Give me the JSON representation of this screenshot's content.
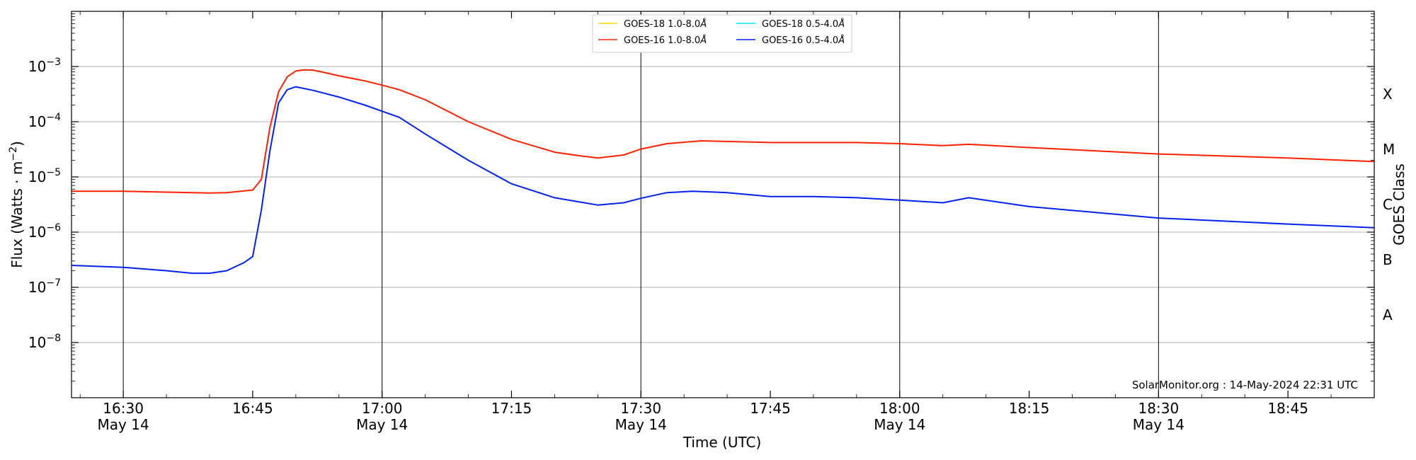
{
  "chart_data": {
    "type": "line",
    "title": "",
    "xlabel": "Time (UTC)",
    "ylabel": "Flux (Watts · m",
    "ylabel_sup": "−2",
    "ylabel_close": ")",
    "y2label": "GOES Class",
    "yscale": "log",
    "ylim": [
      1e-09,
      0.01
    ],
    "xlim": [
      "2024-05-14 16:24",
      "2024-05-14 18:55"
    ],
    "grid": "horizontal at decades",
    "legend_position": "top-center",
    "x_ticks": [
      {
        "time": "2024-05-14 16:30",
        "label": "16:30",
        "sublabel": "May 14",
        "vline": true
      },
      {
        "time": "2024-05-14 16:45",
        "label": "16:45",
        "sublabel": "",
        "vline": false
      },
      {
        "time": "2024-05-14 17:00",
        "label": "17:00",
        "sublabel": "May 14",
        "vline": true
      },
      {
        "time": "2024-05-14 17:15",
        "label": "17:15",
        "sublabel": "",
        "vline": false
      },
      {
        "time": "2024-05-14 17:30",
        "label": "17:30",
        "sublabel": "May 14",
        "vline": true
      },
      {
        "time": "2024-05-14 17:45",
        "label": "17:45",
        "sublabel": "",
        "vline": false
      },
      {
        "time": "2024-05-14 18:00",
        "label": "18:00",
        "sublabel": "May 14",
        "vline": true
      },
      {
        "time": "2024-05-14 18:15",
        "label": "18:15",
        "sublabel": "",
        "vline": false
      },
      {
        "time": "2024-05-14 18:30",
        "label": "18:30",
        "sublabel": "May 14",
        "vline": true
      },
      {
        "time": "2024-05-14 18:45",
        "label": "18:45",
        "sublabel": "",
        "vline": false
      }
    ],
    "y_ticks": [
      {
        "value": 1e-08,
        "base": "10",
        "exp": "−8"
      },
      {
        "value": 1e-07,
        "base": "10",
        "exp": "−7"
      },
      {
        "value": 1e-06,
        "base": "10",
        "exp": "−6"
      },
      {
        "value": 1e-05,
        "base": "10",
        "exp": "−5"
      },
      {
        "value": 0.0001,
        "base": "10",
        "exp": "−4"
      },
      {
        "value": 0.001,
        "base": "10",
        "exp": "−3"
      }
    ],
    "goes_classes": [
      {
        "label": "A",
        "value": 3.16e-08
      },
      {
        "label": "B",
        "value": 3.16e-07
      },
      {
        "label": "C",
        "value": 3.16e-06
      },
      {
        "label": "M",
        "value": 3.16e-05
      },
      {
        "label": "X",
        "value": 0.000316
      }
    ],
    "series": [
      {
        "name": "GOES-18 1.0-8.0",
        "unit": "Å",
        "color": "#ffd700",
        "points": []
      },
      {
        "name": "GOES-16 1.0-8.0",
        "unit": "Å",
        "color": "#ff2200",
        "points": [
          [
            "2024-05-14 16:24",
            5.5e-06
          ],
          [
            "2024-05-14 16:30",
            5.5e-06
          ],
          [
            "2024-05-14 16:35",
            5.3e-06
          ],
          [
            "2024-05-14 16:40",
            5.1e-06
          ],
          [
            "2024-05-14 16:42",
            5.2e-06
          ],
          [
            "2024-05-14 16:45",
            5.8e-06
          ],
          [
            "2024-05-14 16:46",
            9e-06
          ],
          [
            "2024-05-14 16:47",
            8e-05
          ],
          [
            "2024-05-14 16:48",
            0.00035
          ],
          [
            "2024-05-14 16:49",
            0.00065
          ],
          [
            "2024-05-14 16:50",
            0.00083
          ],
          [
            "2024-05-14 16:51",
            0.00087
          ],
          [
            "2024-05-14 16:52",
            0.00086
          ],
          [
            "2024-05-14 16:53",
            0.0008
          ],
          [
            "2024-05-14 16:55",
            0.00068
          ],
          [
            "2024-05-14 16:58",
            0.00055
          ],
          [
            "2024-05-14 17:00",
            0.00046
          ],
          [
            "2024-05-14 17:02",
            0.00038
          ],
          [
            "2024-05-14 17:05",
            0.00025
          ],
          [
            "2024-05-14 17:10",
            0.0001
          ],
          [
            "2024-05-14 17:15",
            4.8e-05
          ],
          [
            "2024-05-14 17:20",
            2.8e-05
          ],
          [
            "2024-05-14 17:23",
            2.4e-05
          ],
          [
            "2024-05-14 17:25",
            2.2e-05
          ],
          [
            "2024-05-14 17:28",
            2.5e-05
          ],
          [
            "2024-05-14 17:30",
            3.2e-05
          ],
          [
            "2024-05-14 17:33",
            4e-05
          ],
          [
            "2024-05-14 17:37",
            4.5e-05
          ],
          [
            "2024-05-14 17:45",
            4.2e-05
          ],
          [
            "2024-05-14 17:55",
            4.2e-05
          ],
          [
            "2024-05-14 18:00",
            4e-05
          ],
          [
            "2024-05-14 18:05",
            3.7e-05
          ],
          [
            "2024-05-14 18:08",
            3.9e-05
          ],
          [
            "2024-05-14 18:15",
            3.4e-05
          ],
          [
            "2024-05-14 18:30",
            2.6e-05
          ],
          [
            "2024-05-14 18:45",
            2.2e-05
          ],
          [
            "2024-05-14 18:55",
            1.9e-05
          ]
        ]
      },
      {
        "name": "GOES-18 0.5-4.0",
        "unit": "Å",
        "color": "#00e5ee",
        "points": []
      },
      {
        "name": "GOES-16 0.5-4.0",
        "unit": "Å",
        "color": "#0022ee",
        "points": [
          [
            "2024-05-14 16:24",
            2.5e-07
          ],
          [
            "2024-05-14 16:30",
            2.3e-07
          ],
          [
            "2024-05-14 16:35",
            2e-07
          ],
          [
            "2024-05-14 16:38",
            1.8e-07
          ],
          [
            "2024-05-14 16:40",
            1.8e-07
          ],
          [
            "2024-05-14 16:42",
            2e-07
          ],
          [
            "2024-05-14 16:44",
            2.8e-07
          ],
          [
            "2024-05-14 16:45",
            3.6e-07
          ],
          [
            "2024-05-14 16:46",
            2.5e-06
          ],
          [
            "2024-05-14 16:47",
            3e-05
          ],
          [
            "2024-05-14 16:48",
            0.00022
          ],
          [
            "2024-05-14 16:49",
            0.00038
          ],
          [
            "2024-05-14 16:50",
            0.00043
          ],
          [
            "2024-05-14 16:52",
            0.00037
          ],
          [
            "2024-05-14 16:55",
            0.00028
          ],
          [
            "2024-05-14 16:58",
            0.0002
          ],
          [
            "2024-05-14 17:00",
            0.000155
          ],
          [
            "2024-05-14 17:02",
            0.00012
          ],
          [
            "2024-05-14 17:05",
            6e-05
          ],
          [
            "2024-05-14 17:10",
            2e-05
          ],
          [
            "2024-05-14 17:15",
            7.5e-06
          ],
          [
            "2024-05-14 17:20",
            4.2e-06
          ],
          [
            "2024-05-14 17:23",
            3.5e-06
          ],
          [
            "2024-05-14 17:25",
            3.1e-06
          ],
          [
            "2024-05-14 17:28",
            3.4e-06
          ],
          [
            "2024-05-14 17:30",
            4.1e-06
          ],
          [
            "2024-05-14 17:33",
            5.2e-06
          ],
          [
            "2024-05-14 17:36",
            5.5e-06
          ],
          [
            "2024-05-14 17:40",
            5.2e-06
          ],
          [
            "2024-05-14 17:45",
            4.4e-06
          ],
          [
            "2024-05-14 17:50",
            4.4e-06
          ],
          [
            "2024-05-14 17:55",
            4.2e-06
          ],
          [
            "2024-05-14 18:00",
            3.8e-06
          ],
          [
            "2024-05-14 18:05",
            3.4e-06
          ],
          [
            "2024-05-14 18:08",
            4.2e-06
          ],
          [
            "2024-05-14 18:15",
            2.9e-06
          ],
          [
            "2024-05-14 18:30",
            1.8e-06
          ],
          [
            "2024-05-14 18:45",
            1.4e-06
          ],
          [
            "2024-05-14 18:55",
            1.2e-06
          ]
        ]
      }
    ],
    "annotation": "SolarMonitor.org : 14-May-2024 22:31 UTC"
  }
}
